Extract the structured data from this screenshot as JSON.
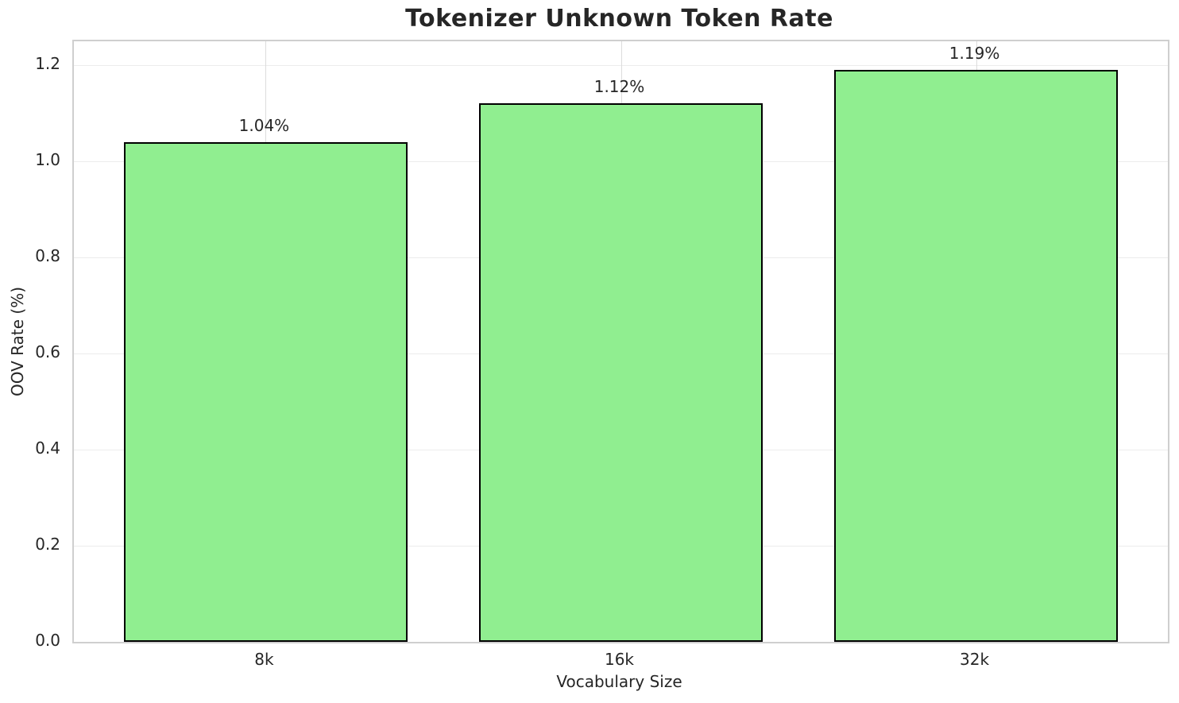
{
  "chart_data": {
    "type": "bar",
    "title": "Tokenizer Unknown Token Rate",
    "xlabel": "Vocabulary Size",
    "ylabel": "OOV Rate (%)",
    "categories": [
      "8k",
      "16k",
      "32k"
    ],
    "values": [
      1.04,
      1.12,
      1.19
    ],
    "bar_labels": [
      "1.04%",
      "1.12%",
      "1.19%"
    ],
    "yticks": [
      0.0,
      0.2,
      0.4,
      0.6,
      0.8,
      1.0,
      1.2
    ],
    "ytick_labels": [
      "0.0",
      "0.2",
      "0.4",
      "0.6",
      "0.8",
      "1.0",
      "1.2"
    ],
    "ylim": [
      0,
      1.2495
    ],
    "grid": "on",
    "legend": "none",
    "colors": {
      "bar_fill": "#90EE90",
      "bar_edge": "#000000",
      "grid_h": "#ececec",
      "grid_v": "#dcdcdc",
      "spine": "#cfcfcf",
      "text": "#262626",
      "background": "#ffffff"
    }
  }
}
